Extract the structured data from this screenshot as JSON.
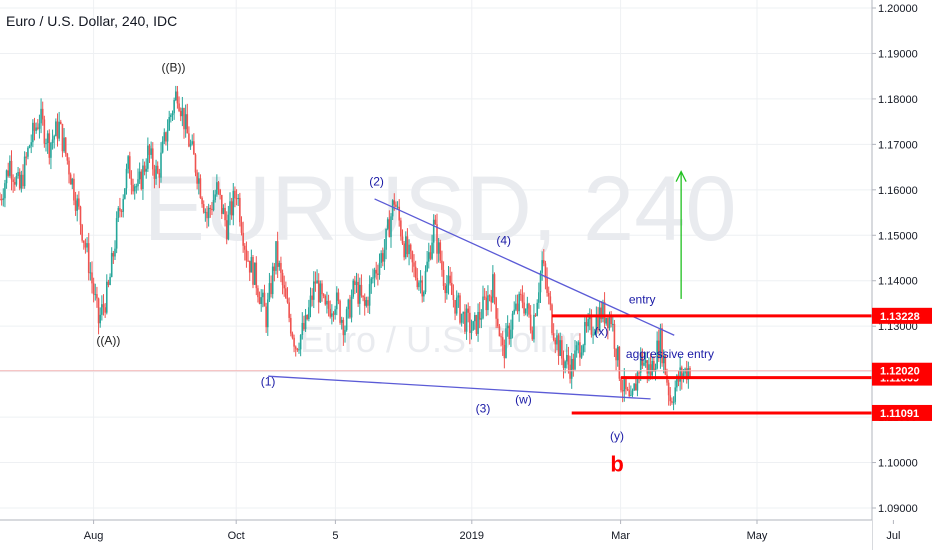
{
  "chart_data": {
    "type": "candlestick",
    "title": "Euro / U.S. Dollar, 240, IDC",
    "watermark": {
      "symbol": "EURUSD, 240",
      "name": "Euro / U.S. Dollar"
    },
    "y_axis": {
      "position": "right",
      "min": 1.09,
      "max": 1.2,
      "tick_labels": [
        "1.20000",
        "1.19000",
        "1.18000",
        "1.17000",
        "1.16000",
        "1.15000",
        "1.14000",
        "1.13000",
        "1.12000",
        "1.11000",
        "1.10000",
        "1.09000"
      ]
    },
    "x_axis": {
      "tick_labels": [
        "Aug",
        "Oct",
        "5",
        "2019",
        "Mar",
        "May",
        "Jul"
      ]
    },
    "grid": true,
    "price_path": [
      [
        0,
        1.158
      ],
      [
        1,
        1.166
      ],
      [
        2,
        1.16
      ],
      [
        3,
        1.17
      ],
      [
        4,
        1.176
      ],
      [
        5,
        1.17
      ],
      [
        6,
        1.174
      ],
      [
        7,
        1.165
      ],
      [
        8,
        1.155
      ],
      [
        9,
        1.144
      ],
      [
        10,
        1.131
      ],
      [
        11,
        1.138
      ],
      [
        12,
        1.154
      ],
      [
        13,
        1.165
      ],
      [
        14,
        1.16
      ],
      [
        15,
        1.168
      ],
      [
        16,
        1.163
      ],
      [
        17,
        1.174
      ],
      [
        18,
        1.182
      ],
      [
        19,
        1.172
      ],
      [
        20,
        1.164
      ],
      [
        21,
        1.154
      ],
      [
        22,
        1.16
      ],
      [
        23,
        1.152
      ],
      [
        24,
        1.16
      ],
      [
        25,
        1.146
      ],
      [
        26,
        1.14
      ],
      [
        27,
        1.132
      ],
      [
        28,
        1.146
      ],
      [
        29,
        1.135
      ],
      [
        30,
        1.126
      ],
      [
        31,
        1.13
      ],
      [
        32,
        1.14
      ],
      [
        33,
        1.133
      ],
      [
        34,
        1.136
      ],
      [
        35,
        1.13
      ],
      [
        36,
        1.139
      ],
      [
        37,
        1.134
      ],
      [
        38,
        1.142
      ],
      [
        39,
        1.147
      ],
      [
        40,
        1.158
      ],
      [
        41,
        1.148
      ],
      [
        42,
        1.142
      ],
      [
        43,
        1.139
      ],
      [
        44,
        1.152
      ],
      [
        45,
        1.141
      ],
      [
        46,
        1.136
      ],
      [
        47,
        1.132
      ],
      [
        48,
        1.129
      ],
      [
        49,
        1.134
      ],
      [
        50,
        1.139
      ],
      [
        51,
        1.124
      ],
      [
        52,
        1.132
      ],
      [
        53,
        1.136
      ],
      [
        54,
        1.13
      ],
      [
        55,
        1.144
      ],
      [
        56,
        1.131
      ],
      [
        57,
        1.123
      ],
      [
        58,
        1.121
      ],
      [
        59,
        1.127
      ],
      [
        60,
        1.13
      ],
      [
        61,
        1.133
      ],
      [
        62,
        1.132
      ],
      [
        63,
        1.118
      ],
      [
        64,
        1.112
      ],
      [
        65,
        1.123
      ],
      [
        66,
        1.12
      ],
      [
        67,
        1.127
      ],
      [
        68,
        1.114
      ],
      [
        69,
        1.119
      ],
      [
        70,
        1.121
      ]
    ],
    "x_ticks_at": [
      0.18,
      0.41,
      0.57,
      0.79,
      1.03,
      1.25,
      1.47
    ],
    "wave_labels": [
      {
        "text": "((B))",
        "at": [
          17.6,
          1.186
        ]
      },
      {
        "text": "((A))",
        "at": [
          11.0,
          1.126
        ]
      },
      {
        "text": "(1)",
        "at": [
          27.2,
          1.117
        ]
      },
      {
        "text": "(2)",
        "at": [
          38.2,
          1.161
        ]
      },
      {
        "text": "(3)",
        "at": [
          49.0,
          1.111
        ]
      },
      {
        "text": "(4)",
        "at": [
          51.1,
          1.148
        ]
      },
      {
        "text": "(w)",
        "at": [
          53.1,
          1.113
        ]
      },
      {
        "text": "(x)",
        "at": [
          61.0,
          1.128
        ]
      },
      {
        "text": "(y)",
        "at": [
          62.6,
          1.105
        ]
      },
      {
        "text": "b",
        "at": [
          62.6,
          1.098
        ]
      }
    ],
    "trendlines": [
      {
        "from": [
          38.0,
          1.158
        ],
        "to": [
          68.4,
          1.128
        ],
        "color": "#5b5bd6"
      },
      {
        "from": [
          27.2,
          1.119
        ],
        "to": [
          66.0,
          1.114
        ],
        "color": "#5b5bd6"
      }
    ],
    "price_levels": [
      {
        "value": "1.13228",
        "from": 56.0,
        "color": "#ff0000"
      },
      {
        "value": "1.11869",
        "from": 63.0,
        "color": "#ff0000"
      },
      {
        "value": "1.11091",
        "from": 58.0,
        "color": "#ff0000"
      }
    ],
    "current_price": {
      "value": "1.12020",
      "color": "#ef5350"
    },
    "annotations": [
      {
        "text": "entry",
        "at": [
          63.8,
          1.135
        ]
      },
      {
        "text": "aggressive entry",
        "at": [
          63.5,
          1.123
        ]
      }
    ],
    "target_arrow": {
      "from": [
        69.1,
        1.136
      ],
      "to": [
        69.1,
        1.164
      ],
      "color": "#20c020"
    },
    "colors": {
      "up": "#26a69a",
      "down": "#ef5350",
      "wave_label": "#1a1aa6",
      "b_label": "#ff0000",
      "annotation": "#1a1aa6"
    }
  }
}
